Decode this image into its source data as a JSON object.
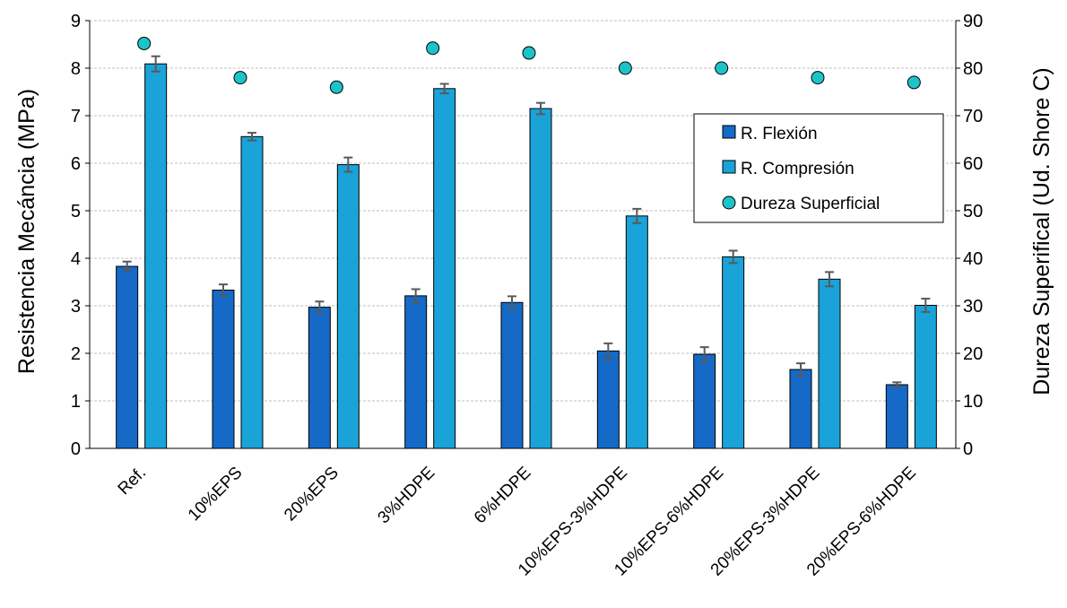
{
  "chart_data": {
    "type": "bar",
    "categories": [
      "Ref.",
      "10%EPS",
      "20%EPS",
      "3%HDPE",
      "6%HDPE",
      "10%EPS-3%HDPE",
      "10%EPS-6%HDPE",
      "20%EPS-3%HDPE",
      "20%EPS-6%HDPE"
    ],
    "series": [
      {
        "name": "R. Flexión",
        "axis": "left",
        "kind": "bar",
        "color": "#1569C7",
        "values": [
          3.83,
          3.33,
          2.97,
          3.21,
          3.07,
          2.05,
          1.98,
          1.66,
          1.34
        ],
        "errors": [
          0.1,
          0.12,
          0.12,
          0.14,
          0.13,
          0.16,
          0.15,
          0.13,
          0.05
        ]
      },
      {
        "name": "R. Compresión",
        "axis": "left",
        "kind": "bar",
        "color": "#1AA3D9",
        "values": [
          8.09,
          6.56,
          5.97,
          7.57,
          7.15,
          4.89,
          4.03,
          3.56,
          3.01
        ],
        "errors": [
          0.16,
          0.08,
          0.15,
          0.1,
          0.12,
          0.15,
          0.13,
          0.15,
          0.14
        ]
      },
      {
        "name": "Dureza Superficial",
        "axis": "right",
        "kind": "scatter",
        "color": "#1CC4C9",
        "values": [
          85.2,
          78,
          76,
          84.2,
          83.2,
          80,
          80,
          78,
          77
        ]
      }
    ],
    "ylabel": "Resistencia Mecáncia (MPa)",
    "y2label": "Dureza Superifical (Ud. Shore C)",
    "ylim": [
      0,
      9
    ],
    "y2lim": [
      0,
      90
    ],
    "yticks": [
      "0",
      "1",
      "2",
      "3",
      "4",
      "5",
      "6",
      "7",
      "8",
      "9"
    ],
    "y2ticks": [
      "0",
      "10",
      "20",
      "30",
      "40",
      "50",
      "60",
      "70",
      "80",
      "90"
    ],
    "grid": true,
    "legend_position": "right"
  }
}
